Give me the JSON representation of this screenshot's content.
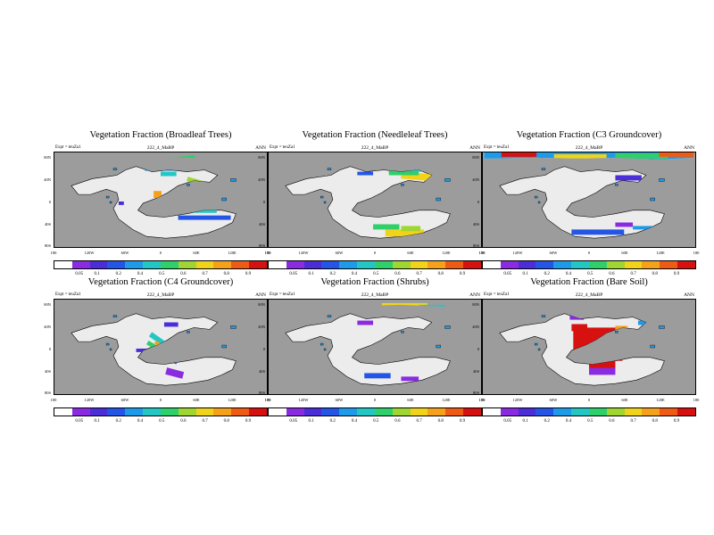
{
  "figure": {
    "panels": [
      {
        "title": "Vegetation Fraction (Broadleaf Trees)",
        "expt": "Expt = teuZa1",
        "id": "222_4_MaBP",
        "mean": "ANN",
        "pattern": "broadleaf"
      },
      {
        "title": "Vegetation Fraction (Needleleaf Trees)",
        "expt": "Expt = teuZa1",
        "id": "222_4_MaBP",
        "mean": "ANN",
        "pattern": "needleleaf"
      },
      {
        "title": "Vegetation Fraction (C3 Groundcover)",
        "expt": "Expt = teuZa1",
        "id": "222_4_MaBP",
        "mean": "ANN",
        "pattern": "c3"
      },
      {
        "title": "Vegetation Fraction (C4 Groundcover)",
        "expt": "Expt = teuZa1",
        "id": "222_4_MaBP",
        "mean": "ANN",
        "pattern": "c4"
      },
      {
        "title": "Vegetation Fraction (Shrubs)",
        "expt": "Expt = teuZa1",
        "id": "222_4_MaBP",
        "mean": "ANN",
        "pattern": "shrubs"
      },
      {
        "title": "Vegetation Fraction (Bare Soil)",
        "expt": "Expt = teuZa1",
        "id": "222_4_MaBP",
        "mean": "ANN",
        "pattern": "bare"
      }
    ],
    "y_ticks": [
      "80N",
      "40N",
      "0",
      "40S",
      "80S"
    ],
    "x_ticks": [
      "180",
      "120W",
      "60W",
      "0",
      "60E",
      "120E",
      "180"
    ],
    "colorbar_ticks": [
      "0.05",
      "0.1",
      "0.2",
      "0.4",
      "0.5",
      "0.6",
      "0.7",
      "0.8",
      "0.9"
    ],
    "colorbar_colors": [
      "#ffffff",
      "#8a2be2",
      "#4b2ed8",
      "#2455e6",
      "#1e9be8",
      "#22c7c4",
      "#2fcf6a",
      "#9fd632",
      "#f1d31a",
      "#f5a11a",
      "#ef5a14",
      "#d71010"
    ],
    "colors": {
      "ocean": "#9c9c9c",
      "land_low": "#ececec",
      "border": "#000000"
    }
  }
}
